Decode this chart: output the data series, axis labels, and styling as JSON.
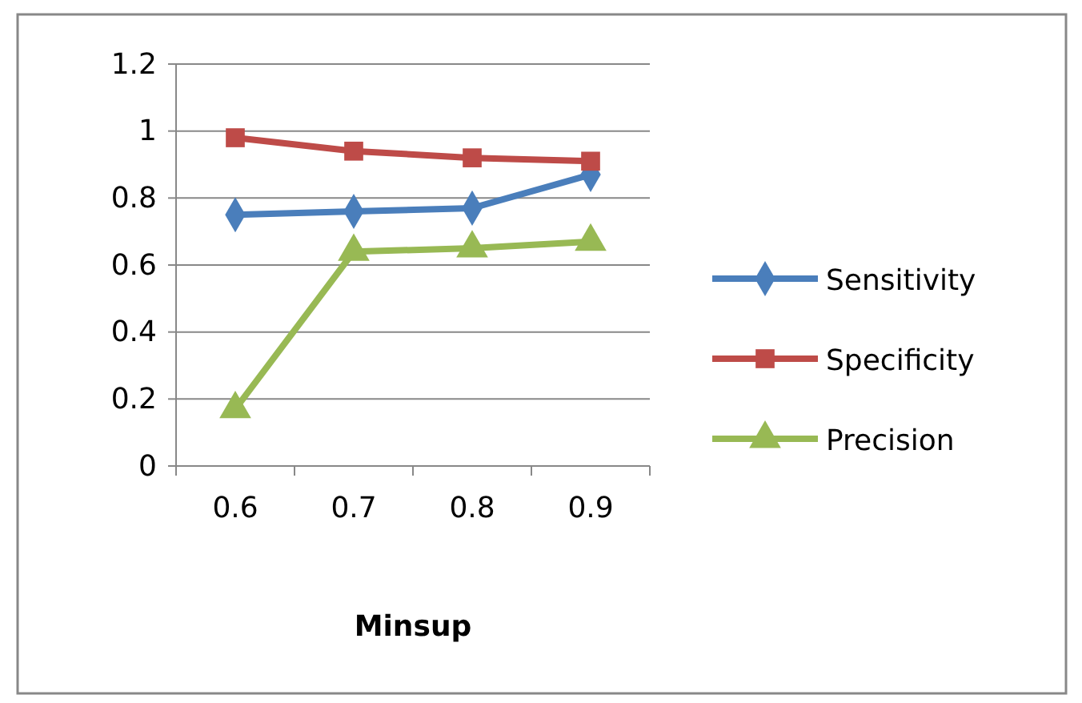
{
  "chart_data": {
    "type": "line",
    "xlabel": "Minsup",
    "categories": [
      "0.6",
      "0.7",
      "0.8",
      "0.9"
    ],
    "series": [
      {
        "name": "Sensitivity",
        "color": "#4a7ebb",
        "marker": "diamond",
        "values": [
          0.75,
          0.76,
          0.77,
          0.87
        ]
      },
      {
        "name": "Specificity",
        "color": "#be4b48",
        "marker": "square",
        "values": [
          0.98,
          0.94,
          0.92,
          0.91
        ]
      },
      {
        "name": "Precision",
        "color": "#98b954",
        "marker": "triangle",
        "values": [
          0.17,
          0.64,
          0.65,
          0.67
        ]
      }
    ],
    "ylim": [
      0,
      1.2
    ],
    "yticks": [
      0,
      0.2,
      0.4,
      0.6,
      0.8,
      1,
      1.2
    ],
    "grid": "y",
    "legend": "right",
    "line_style": "solid"
  }
}
